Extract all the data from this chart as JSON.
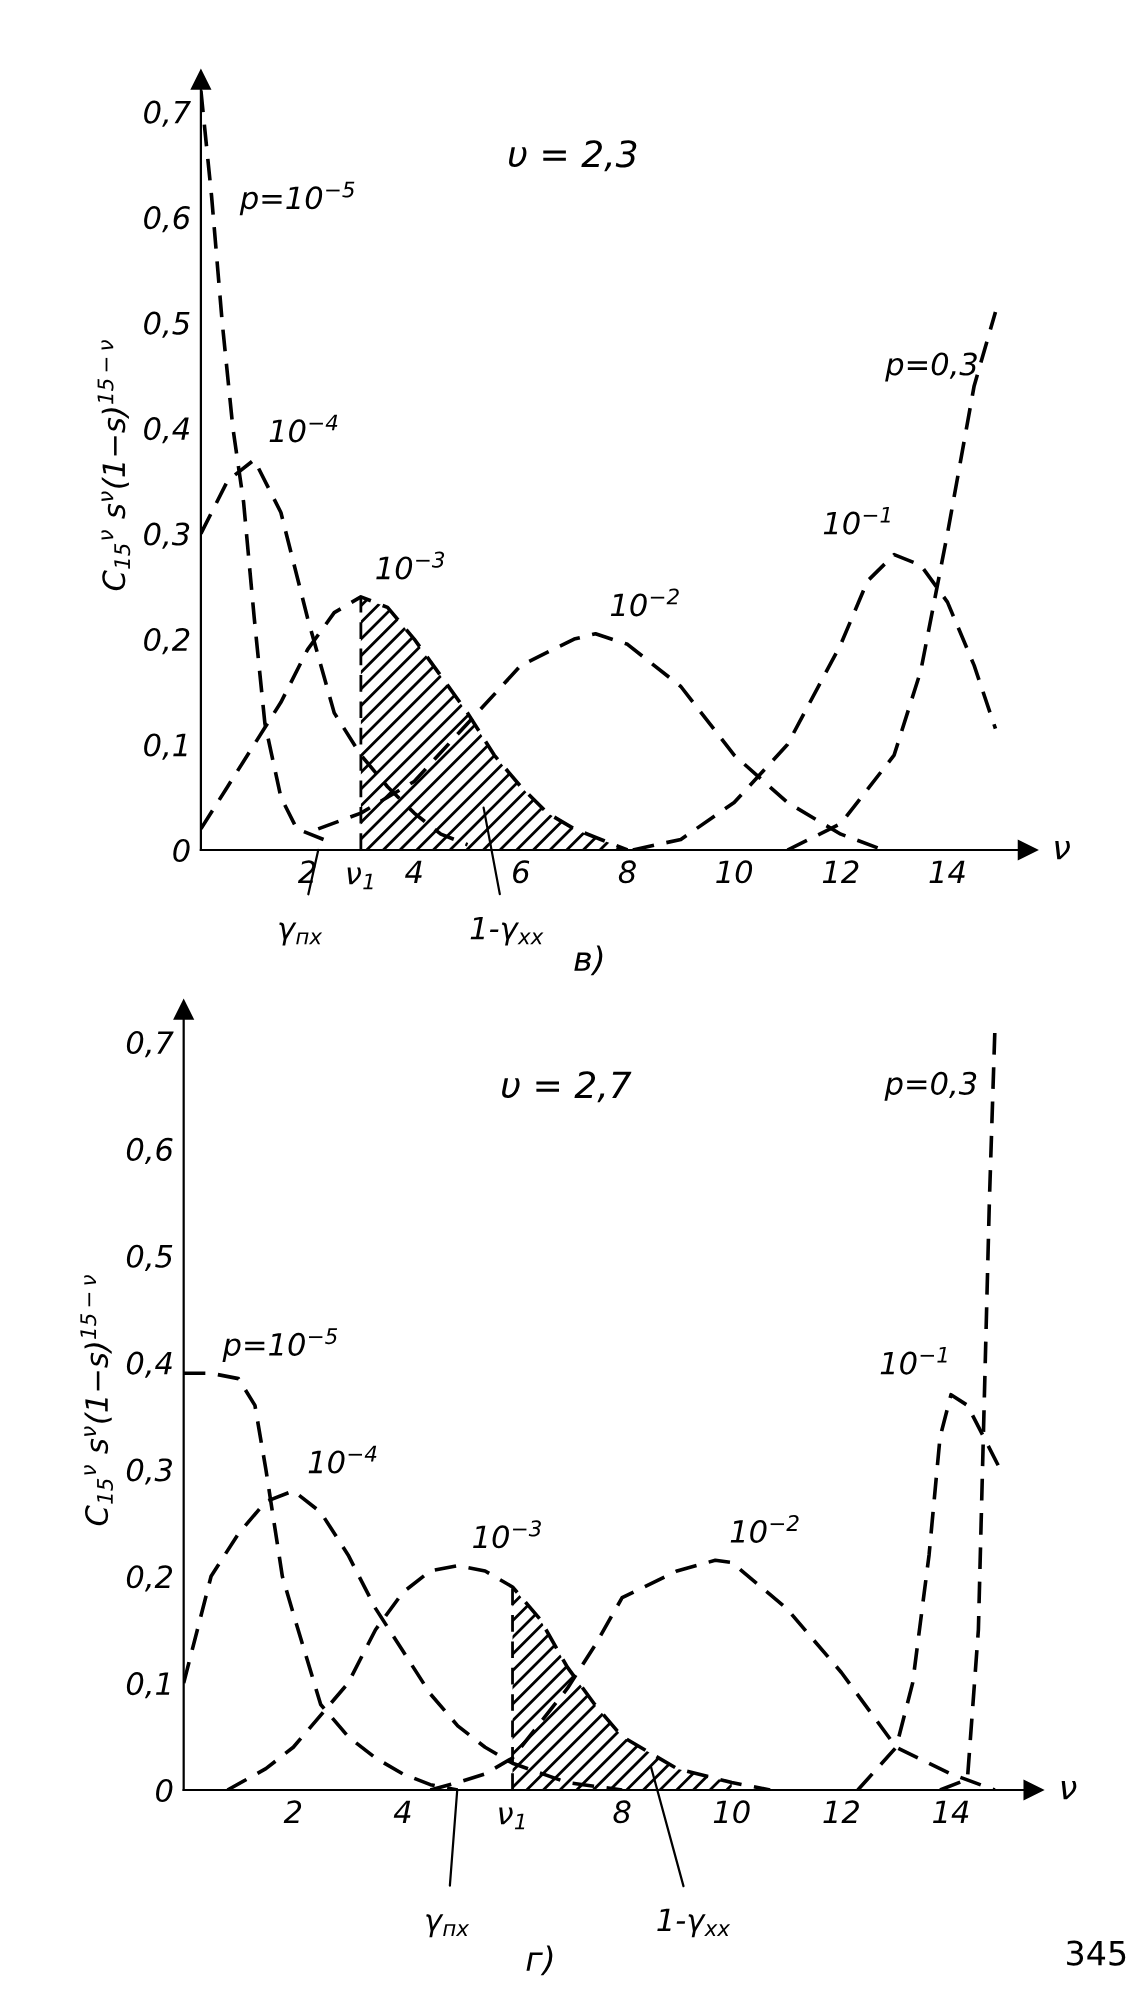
{
  "chart_data": [
    {
      "type": "line",
      "xlabel": "ν",
      "ylabel": "C$_{15}$$^{ν}$ s$^{ν}$(1−s)$^{15−ν}$",
      "xlim": [
        0,
        15.5
      ],
      "ylim": [
        0,
        0.73
      ],
      "xticks": [
        2,
        4,
        6,
        8,
        10,
        12,
        14
      ],
      "yticks": [
        0,
        {
          "value": 0.1,
          "label": "0,1"
        },
        {
          "value": 0.2,
          "label": "0,2"
        },
        {
          "value": 0.3,
          "label": "0,3"
        },
        {
          "value": 0.4,
          "label": "0,4"
        },
        {
          "value": 0.5,
          "label": "0,5"
        },
        {
          "value": 0.6,
          "label": "0,6"
        },
        {
          "value": 0.7,
          "label": "0,7"
        }
      ],
      "grid": false,
      "marker": "none",
      "line_style": "dashed",
      "series": [
        {
          "name": "p=10$^{−5}$",
          "color": "#000000",
          "x": [
            0,
            0.2,
            0.4,
            0.6,
            0.8,
            1.0,
            1.2,
            1.5,
            1.8,
            2.3
          ],
          "values": [
            0.72,
            0.62,
            0.5,
            0.4,
            0.33,
            0.22,
            0.12,
            0.05,
            0.02,
            0.01
          ]
        },
        {
          "name": "10$^{−4}$",
          "color": "#000000",
          "x": [
            0,
            0.5,
            1,
            1.5,
            2,
            2.5,
            3,
            3.5,
            4,
            4.5,
            5
          ],
          "values": [
            0.3,
            0.35,
            0.37,
            0.32,
            0.22,
            0.13,
            0.09,
            0.06,
            0.035,
            0.015,
            0.005
          ]
        },
        {
          "name": "10$^{−3}$",
          "color": "#000000",
          "x": [
            0,
            0.5,
            1,
            1.5,
            2,
            2.5,
            3,
            3.5,
            4,
            4.5,
            5,
            5.5,
            6,
            6.5,
            7,
            7.5,
            8
          ],
          "values": [
            0.02,
            0.06,
            0.1,
            0.14,
            0.19,
            0.225,
            0.24,
            0.23,
            0.2,
            0.165,
            0.13,
            0.09,
            0.06,
            0.035,
            0.02,
            0.01,
            0.0
          ]
        },
        {
          "name": "10$^{−2}$",
          "color": "#000000",
          "x": [
            2.2,
            3,
            4,
            5,
            6,
            7,
            7.4,
            8,
            9,
            10,
            11,
            12,
            12.8
          ],
          "values": [
            0.02,
            0.035,
            0.065,
            0.12,
            0.175,
            0.2,
            0.205,
            0.195,
            0.155,
            0.09,
            0.045,
            0.015,
            0.0
          ]
        },
        {
          "name": "10$^{−1}$",
          "color": "#000000",
          "x": [
            8.1,
            9,
            10,
            11,
            12,
            12.5,
            13,
            13.5,
            14,
            14.5,
            14.9
          ],
          "values": [
            0,
            0.01,
            0.045,
            0.1,
            0.195,
            0.255,
            0.28,
            0.27,
            0.235,
            0.175,
            0.115
          ]
        },
        {
          "name": "p=0,3",
          "color": "#000000",
          "x": [
            11,
            12,
            13,
            13.5,
            14,
            14.5,
            14.9
          ],
          "values": [
            0,
            0.025,
            0.09,
            0.17,
            0.3,
            0.44,
            0.51
          ]
        },
        {
          "type": "area",
          "color": "#000000",
          "x": [
            3,
            3.5,
            4,
            4.5,
            5,
            5.5,
            6,
            6.5,
            7,
            7.5,
            8
          ],
          "values": [
            0.24,
            0.23,
            0.2,
            0.165,
            0.13,
            0.09,
            0.06,
            0.035,
            0.02,
            0.01,
            0.0
          ]
        }
      ],
      "ref_lines": [
        {
          "axis": "x",
          "value": 3,
          "label": "ν$_{1}$",
          "line_style": "dashed",
          "color": "#000000"
        }
      ],
      "annotations": [
        "υ = 2,3",
        "в)",
        "γ$_{пх}$",
        "1-γ$_{хх}$"
      ]
    },
    {
      "type": "line",
      "xlabel": "ν",
      "ylabel": "C$_{15}$$^{ν}$ s$^{ν}$(1−s)$^{15−ν}$",
      "xlim": [
        0,
        15.5
      ],
      "ylim": [
        0,
        0.73
      ],
      "xticks": [
        2,
        4,
        8,
        10,
        12,
        14
      ],
      "yticks": [
        0,
        {
          "value": 0.1,
          "label": "0,1"
        },
        {
          "value": 0.2,
          "label": "0,2"
        },
        {
          "value": 0.3,
          "label": "0,3"
        },
        {
          "value": 0.4,
          "label": "0,4"
        },
        {
          "value": 0.5,
          "label": "0,5"
        },
        {
          "value": 0.6,
          "label": "0,6"
        },
        {
          "value": 0.7,
          "label": "0,7"
        }
      ],
      "grid": false,
      "marker": "none",
      "line_style": "dashed",
      "series": [
        {
          "name": "p=10$^{−5}$",
          "color": "#000000",
          "x": [
            0,
            0.5,
            1,
            1.3,
            1.5,
            1.8,
            2,
            2.5,
            3,
            3.5,
            4,
            4.5,
            5
          ],
          "values": [
            0.39,
            0.39,
            0.385,
            0.36,
            0.3,
            0.2,
            0.165,
            0.08,
            0.05,
            0.03,
            0.015,
            0.005,
            0.0
          ]
        },
        {
          "name": "10$^{−4}$",
          "color": "#000000",
          "x": [
            0,
            0.5,
            1,
            1.5,
            2,
            2.5,
            3,
            3.5,
            4,
            4.5,
            5,
            5.5,
            6,
            7,
            8
          ],
          "values": [
            0.1,
            0.2,
            0.24,
            0.27,
            0.28,
            0.26,
            0.22,
            0.17,
            0.13,
            0.09,
            0.06,
            0.04,
            0.025,
            0.007,
            0.0
          ]
        },
        {
          "name": "10$^{−3}$",
          "color": "#000000",
          "x": [
            0.8,
            1.5,
            2,
            3,
            3.5,
            4,
            4.5,
            5,
            5.5,
            6,
            6.5,
            7,
            7.5,
            8,
            9,
            10,
            10.7
          ],
          "values": [
            0,
            0.02,
            0.04,
            0.1,
            0.15,
            0.185,
            0.205,
            0.21,
            0.205,
            0.19,
            0.16,
            0.115,
            0.08,
            0.05,
            0.02,
            0.007,
            0.0
          ]
        },
        {
          "name": "10$^{−2}$",
          "color": "#000000",
          "x": [
            4.5,
            5,
            5.5,
            6,
            7,
            7.5,
            8,
            9,
            9.7,
            10,
            11,
            12,
            12.5,
            13,
            14,
            14.8
          ],
          "values": [
            0,
            0.007,
            0.015,
            0.03,
            0.095,
            0.135,
            0.18,
            0.205,
            0.215,
            0.213,
            0.17,
            0.11,
            0.075,
            0.04,
            0.015,
            0.0
          ]
        },
        {
          "name": "10$^{−1}$",
          "color": "#000000",
          "x": [
            12.3,
            13,
            13.3,
            13.6,
            13.8,
            14,
            14.3,
            14.6,
            14.9
          ],
          "values": [
            0,
            0.04,
            0.1,
            0.22,
            0.33,
            0.37,
            0.36,
            0.33,
            0.3
          ]
        },
        {
          "name": "p=0,3",
          "color": "#000000",
          "x": [
            13.8,
            14.3,
            14.5,
            14.6,
            14.7,
            14.8
          ],
          "values": [
            0,
            0.01,
            0.15,
            0.35,
            0.55,
            0.71
          ]
        },
        {
          "type": "area",
          "color": "#000000",
          "x": [
            6,
            6.5,
            7,
            7.5,
            8,
            9,
            10
          ],
          "values": [
            0.19,
            0.16,
            0.115,
            0.08,
            0.05,
            0.02,
            0.007
          ]
        }
      ],
      "ref_lines": [
        {
          "axis": "x",
          "value": 6,
          "label": "ν$_{1}$",
          "line_style": "dashed",
          "color": "#000000"
        }
      ],
      "annotations": [
        "υ = 2,7",
        "г)",
        "γ$_{пх}$",
        "1-γ$_{хх}$",
        "345"
      ]
    }
  ]
}
